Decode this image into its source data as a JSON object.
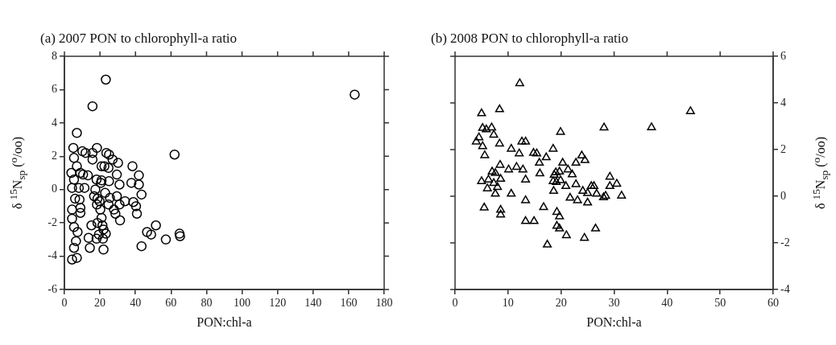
{
  "chart_data": [
    {
      "type": "scatter",
      "title": "(a) 2007 PON to chlorophyll-a ratio",
      "xlabel": "PON:chl-a",
      "ylabel": "δ $^{15}$N$_{sp}$ ($^{o}$/oo)",
      "marker": "circle",
      "xlim": [
        0,
        180
      ],
      "xticks": [
        0,
        20,
        40,
        60,
        80,
        100,
        120,
        140,
        160,
        180
      ],
      "ylim": [
        -6,
        8
      ],
      "yticks": [
        -6,
        -4,
        -2,
        0,
        2,
        4,
        6,
        8
      ],
      "series": [
        {
          "color": "#000000",
          "x": [
            23.3,
            15.8,
            7.0,
            5.0,
            18.3,
            10.1,
            11.9,
            15.8,
            15.8,
            23.6,
            25.1,
            5.4,
            27.1,
            30.2,
            7.0,
            20.9,
            22.5,
            24.8,
            38.3,
            3.9,
            9.0,
            10.5,
            13.2,
            5.4,
            29.5,
            41.9,
            18.1,
            20.9,
            25.1,
            20.5,
            31.0,
            37.7,
            41.9,
            4.3,
            8.1,
            11.3,
            17.4,
            22.9,
            43.4,
            16.7,
            29.5,
            6.0,
            18.6,
            25.6,
            8.5,
            19.8,
            34.1,
            38.8,
            31.0,
            24.8,
            18.3,
            40.3,
            9.0,
            4.3,
            20.2,
            27.9,
            9.0,
            28.7,
            40.8,
            31.3,
            4.3,
            20.9,
            18.6,
            15.2,
            21.4,
            51.5,
            5.4,
            22.0,
            46.5,
            48.8,
            7.4,
            23.3,
            64.8,
            65.1,
            13.6,
            21.7,
            18.1,
            19.4,
            57.1,
            6.5,
            14.3,
            5.4,
            22.0,
            43.4,
            4.3,
            7.0,
            62.0,
            163.4
          ],
          "values": [
            6.6,
            5.0,
            3.4,
            2.5,
            2.5,
            2.3,
            2.2,
            2.2,
            1.8,
            2.2,
            2.1,
            1.9,
            1.8,
            1.6,
            1.4,
            1.4,
            1.4,
            1.3,
            1.4,
            1.0,
            1.0,
            0.9,
            0.85,
            0.6,
            0.9,
            0.85,
            0.6,
            0.55,
            0.5,
            0.4,
            0.3,
            0.4,
            0.3,
            0.1,
            0.1,
            0.1,
            0.0,
            -0.2,
            -0.3,
            -0.4,
            -0.4,
            -0.55,
            -0.55,
            -0.5,
            -0.6,
            -0.7,
            -0.7,
            -0.75,
            -0.9,
            -0.9,
            -0.9,
            -1.0,
            -1.1,
            -1.2,
            -1.2,
            -1.2,
            -1.4,
            -1.45,
            -1.45,
            -1.85,
            -1.75,
            -1.7,
            -2.0,
            -2.15,
            -2.15,
            -2.15,
            -2.25,
            -2.4,
            -2.55,
            -2.7,
            -2.55,
            -2.65,
            -2.65,
            -2.8,
            -2.9,
            -2.95,
            -2.95,
            -2.7,
            -3.0,
            -3.1,
            -3.5,
            -3.5,
            -3.6,
            -3.4,
            -4.2,
            -4.1,
            2.1,
            5.7
          ]
        }
      ]
    },
    {
      "type": "scatter",
      "title": "(b) 2008 PON to chlorophyll-a ratio",
      "xlabel": "PON:chl-a",
      "ylabel": "δ $^{15}$N$_{sp}$ ($^{o}$/oo)",
      "marker": "triangle",
      "xlim": [
        0,
        60
      ],
      "xticks": [
        0,
        10,
        20,
        30,
        40,
        50,
        60
      ],
      "ylim": [
        -4,
        6
      ],
      "yticks": [
        -4,
        -2,
        0,
        2,
        4,
        6
      ],
      "series": [
        {
          "color": "#000000",
          "x": [
            12.2,
            8.4,
            5.0,
            5.2,
            5.9,
            6.9,
            7.3,
            4.5,
            4.0,
            5.2,
            8.4,
            5.6,
            19.9,
            28.1,
            10.6,
            12.6,
            13.3,
            12.1,
            14.8,
            15.4,
            17.2,
            18.5,
            15.9,
            8.5,
            10.1,
            11.6,
            12.8,
            16.0,
            13.3,
            20.3,
            19.0,
            18.7,
            19.7,
            21.3,
            22.1,
            22.8,
            23.9,
            24.5,
            5.0,
            6.3,
            7.0,
            7.6,
            8.6,
            7.3,
            6.1,
            8.0,
            7.6,
            10.6,
            18.5,
            19.1,
            19.9,
            20.9,
            18.6,
            22.8,
            24.1,
            25.7,
            26.2,
            25.0,
            26.7,
            28.4,
            28.0,
            29.2,
            29.2,
            30.5,
            31.4,
            21.7,
            23.1,
            25.0,
            5.5,
            8.6,
            8.6,
            13.3,
            16.7,
            19.2,
            19.7,
            13.3,
            14.9,
            19.2,
            19.7,
            21.0,
            24.4,
            26.5,
            17.4,
            37.05,
            44.4
          ],
          "values": [
            4.84,
            3.72,
            3.55,
            2.92,
            2.86,
            2.94,
            2.63,
            2.52,
            2.34,
            2.14,
            2.25,
            1.75,
            2.75,
            2.94,
            2.03,
            2.34,
            2.34,
            1.83,
            1.85,
            1.83,
            1.66,
            2.03,
            1.43,
            1.34,
            1.14,
            1.25,
            1.14,
            0.97,
            0.71,
            1.43,
            1.02,
            0.91,
            1.05,
            1.14,
            0.93,
            1.43,
            1.74,
            1.54,
            0.64,
            0.71,
            1.05,
            0.99,
            0.74,
            0.56,
            0.33,
            0.39,
            0.1,
            0.1,
            0.64,
            0.6,
            0.68,
            0.43,
            0.22,
            0.51,
            0.22,
            0.43,
            0.43,
            0.13,
            0.1,
            0.01,
            -0.05,
            0.83,
            0.43,
            0.53,
            0.02,
            -0.07,
            -0.18,
            -0.28,
            -0.49,
            -0.59,
            -0.79,
            -0.18,
            -0.47,
            -0.68,
            -0.87,
            -1.07,
            -1.07,
            -1.28,
            -1.39,
            -1.68,
            -1.79,
            -1.39,
            -2.08,
            2.95,
            3.64
          ]
        }
      ]
    }
  ]
}
